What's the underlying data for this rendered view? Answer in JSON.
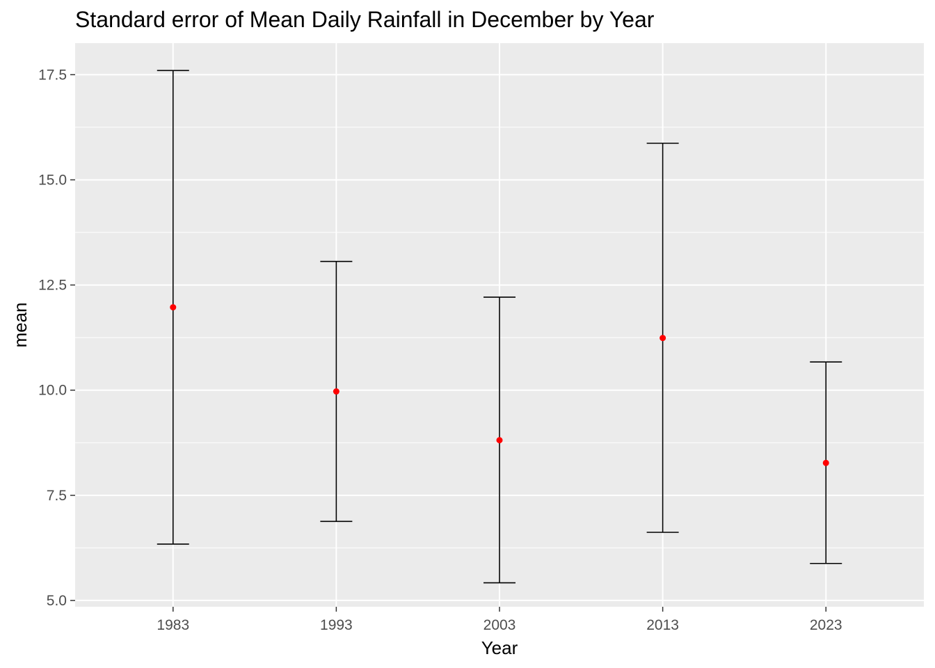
{
  "chart_data": {
    "type": "errorbar",
    "title": "Standard error of Mean Daily Rainfall in December by Year",
    "xlabel": "Year",
    "ylabel": "mean",
    "categories": [
      "1983",
      "1993",
      "2003",
      "2013",
      "2023"
    ],
    "series": [
      {
        "mean": [
          11.97,
          9.97,
          8.81,
          11.24,
          8.27
        ],
        "lower": [
          6.34,
          6.88,
          5.42,
          6.62,
          5.88
        ],
        "upper": [
          17.6,
          13.06,
          12.21,
          15.87,
          10.67
        ]
      }
    ],
    "yticks": [
      "5.0",
      "7.5",
      "10.0",
      "12.5",
      "15.0",
      "17.5"
    ],
    "ylim": [
      4.85,
      18.25
    ],
    "grid": true,
    "point_color": "#ff0000",
    "errorbar_color": "#000000",
    "panel_color": "#ebebeb",
    "grid_color": "#ffffff"
  }
}
